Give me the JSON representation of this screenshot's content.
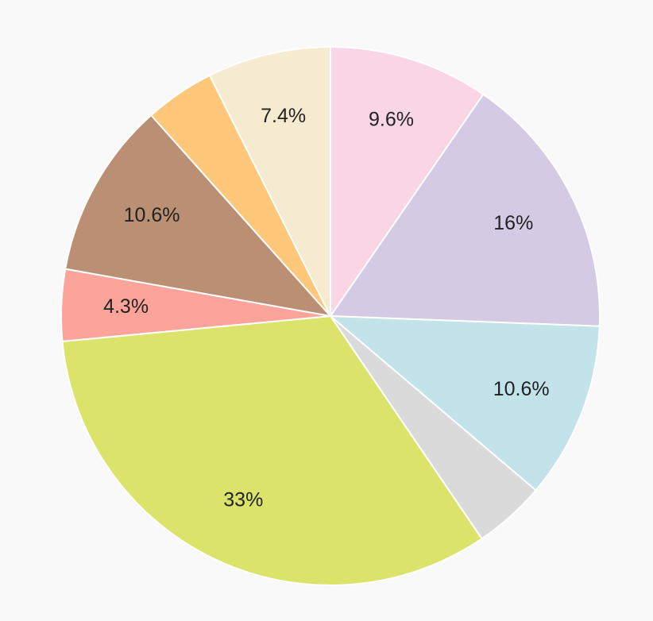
{
  "chart_data": {
    "type": "pie",
    "start": "top",
    "direction": "clockwise",
    "slices": [
      {
        "value": 9.6,
        "label": "9.6%",
        "color": "#f9d5e5"
      },
      {
        "value": 16,
        "label": "16%",
        "color": "#d5cae4"
      },
      {
        "value": 10.6,
        "label": "10.6%",
        "color": "#c1e3e9"
      },
      {
        "value": 4.3,
        "label": "",
        "color": "#dadada"
      },
      {
        "value": 33,
        "label": "33%",
        "color": "#dbe36b"
      },
      {
        "value": 4.3,
        "label": "4.3%",
        "color": "#fca39a"
      },
      {
        "value": 10.6,
        "label": "10.6%",
        "color": "#ba8f73"
      },
      {
        "value": 4.2,
        "label": "",
        "color": "#fec77a"
      },
      {
        "value": 7.4,
        "label": "7.4%",
        "color": "#f6ebd0"
      }
    ]
  }
}
